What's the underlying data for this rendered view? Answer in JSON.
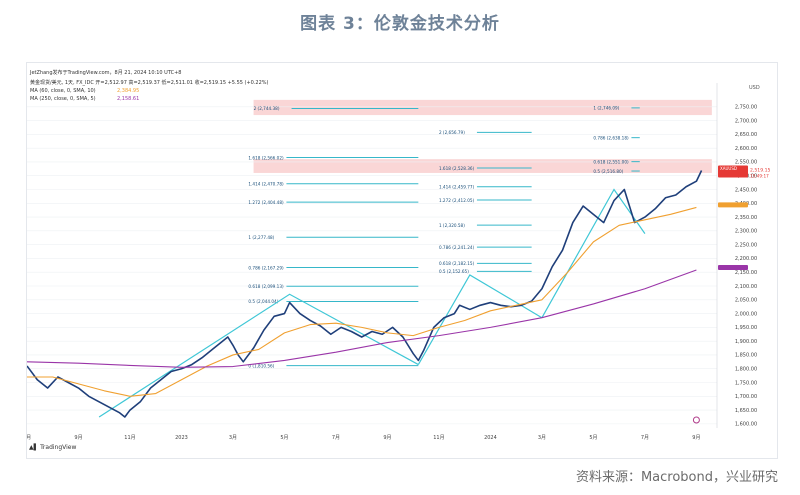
{
  "figure": {
    "title": "图表 3：伦敦金技术分析",
    "source": "资料来源：Macrobond，兴业研究"
  },
  "chart_header": {
    "user_line": "JetZhang发布于TradingView.com，8月 21, 2024 10:10 UTC+8",
    "symbol_line": "黄金现货/美元, 1天, FX_IDC  开=2,512.97  高=2,519.37  低=2,511.01  收=2,519.15  +5.55 (+0.22%)",
    "ma60_line": "MA (60, close, 0, SMA, 10)",
    "ma60_value": "2,384.95",
    "ma250_line": "MA (250, close, 0, SMA, 5)",
    "ma250_value": "2,158.61",
    "currency": "USD",
    "footer_logo": "TradingView"
  },
  "chart_data": {
    "type": "line",
    "x_ticks": [
      "7月",
      "9月",
      "11月",
      "2023",
      "3月",
      "5月",
      "7月",
      "9月",
      "11月",
      "2024",
      "3月",
      "5月",
      "7月",
      "9月"
    ],
    "y_ticks": [
      1600,
      1650,
      1700,
      1750,
      1800,
      1850,
      1900,
      1950,
      2000,
      2050,
      2100,
      2150,
      2200,
      2250,
      2300,
      2350,
      2400,
      2450,
      2500,
      2550,
      2600,
      2650,
      2700,
      2750
    ],
    "y_tick_labels": [
      "1,600.00",
      "1,650.00",
      "1,700.00",
      "1,750.00",
      "1,800.00",
      "1,850.00",
      "1,900.00",
      "1,950.00",
      "2,000.00",
      "2,050.00",
      "2,100.00",
      "2,150.00",
      "2,200.00",
      "2,250.00",
      "2,300.00",
      "2,350.00",
      "2,400.00",
      "2,450.00",
      "2,500.00",
      "2,550.00",
      "2,600.00",
      "2,650.00",
      "2,700.00",
      "2,750.00"
    ],
    "ylim": [
      1585,
      2800
    ],
    "series": [
      {
        "key": "price",
        "name": "黄金现货/美元",
        "color": "#1f3f7a",
        "points": [
          [
            0,
            1810
          ],
          [
            0.2,
            1760
          ],
          [
            0.4,
            1730
          ],
          [
            0.6,
            1770
          ],
          [
            0.8,
            1750
          ],
          [
            1.0,
            1730
          ],
          [
            1.2,
            1700
          ],
          [
            1.4,
            1680
          ],
          [
            1.6,
            1660
          ],
          [
            1.8,
            1640
          ],
          [
            1.9,
            1625
          ],
          [
            2.0,
            1650
          ],
          [
            2.2,
            1680
          ],
          [
            2.4,
            1730
          ],
          [
            2.6,
            1760
          ],
          [
            2.8,
            1790
          ],
          [
            3.0,
            1800
          ],
          [
            3.2,
            1815
          ],
          [
            3.4,
            1840
          ],
          [
            3.6,
            1870
          ],
          [
            3.8,
            1900
          ],
          [
            3.9,
            1915
          ],
          [
            4.0,
            1885
          ],
          [
            4.1,
            1850
          ],
          [
            4.2,
            1825
          ],
          [
            4.4,
            1875
          ],
          [
            4.6,
            1940
          ],
          [
            4.8,
            1990
          ],
          [
            5.0,
            2000
          ],
          [
            5.1,
            2040
          ],
          [
            5.3,
            2000
          ],
          [
            5.5,
            1975
          ],
          [
            5.7,
            1955
          ],
          [
            5.9,
            1925
          ],
          [
            6.1,
            1950
          ],
          [
            6.3,
            1935
          ],
          [
            6.5,
            1915
          ],
          [
            6.7,
            1935
          ],
          [
            6.9,
            1925
          ],
          [
            7.1,
            1950
          ],
          [
            7.3,
            1915
          ],
          [
            7.5,
            1855
          ],
          [
            7.6,
            1830
          ],
          [
            7.7,
            1865
          ],
          [
            7.9,
            1950
          ],
          [
            8.1,
            1985
          ],
          [
            8.3,
            2000
          ],
          [
            8.4,
            2030
          ],
          [
            8.6,
            2015
          ],
          [
            8.8,
            2030
          ],
          [
            9.0,
            2040
          ],
          [
            9.2,
            2030
          ],
          [
            9.4,
            2025
          ],
          [
            9.6,
            2030
          ],
          [
            9.8,
            2045
          ],
          [
            10.0,
            2090
          ],
          [
            10.2,
            2170
          ],
          [
            10.4,
            2230
          ],
          [
            10.6,
            2330
          ],
          [
            10.8,
            2390
          ],
          [
            11.0,
            2360
          ],
          [
            11.2,
            2330
          ],
          [
            11.4,
            2410
          ],
          [
            11.6,
            2450
          ],
          [
            11.8,
            2330
          ],
          [
            12.0,
            2350
          ],
          [
            12.2,
            2380
          ],
          [
            12.4,
            2420
          ],
          [
            12.6,
            2430
          ],
          [
            12.8,
            2460
          ],
          [
            13.0,
            2480
          ],
          [
            13.1,
            2519
          ]
        ]
      },
      {
        "key": "ma60",
        "name": "MA 60",
        "color": "#f0a030",
        "points": [
          [
            0,
            1770
          ],
          [
            0.5,
            1770
          ],
          [
            1.0,
            1745
          ],
          [
            1.5,
            1720
          ],
          [
            2.0,
            1700
          ],
          [
            2.5,
            1710
          ],
          [
            3.0,
            1760
          ],
          [
            3.5,
            1810
          ],
          [
            4.0,
            1850
          ],
          [
            4.5,
            1870
          ],
          [
            5.0,
            1930
          ],
          [
            5.5,
            1960
          ],
          [
            6.0,
            1965
          ],
          [
            6.5,
            1950
          ],
          [
            7.0,
            1930
          ],
          [
            7.5,
            1920
          ],
          [
            8.0,
            1950
          ],
          [
            8.5,
            1975
          ],
          [
            9.0,
            2010
          ],
          [
            9.5,
            2030
          ],
          [
            10.0,
            2050
          ],
          [
            10.5,
            2150
          ],
          [
            11.0,
            2260
          ],
          [
            11.5,
            2320
          ],
          [
            12.0,
            2340
          ],
          [
            12.5,
            2360
          ],
          [
            13.0,
            2385
          ]
        ]
      },
      {
        "key": "ma250",
        "name": "MA 250",
        "color": "#9a35a8",
        "points": [
          [
            0,
            1825
          ],
          [
            1.0,
            1820
          ],
          [
            2.0,
            1812
          ],
          [
            3.0,
            1805
          ],
          [
            4.0,
            1808
          ],
          [
            5.0,
            1830
          ],
          [
            6.0,
            1860
          ],
          [
            7.0,
            1895
          ],
          [
            8.0,
            1920
          ],
          [
            9.0,
            1950
          ],
          [
            10.0,
            1985
          ],
          [
            11.0,
            2035
          ],
          [
            12.0,
            2090
          ],
          [
            13.0,
            2158
          ]
        ]
      }
    ],
    "zigzags": [
      {
        "name": "wave-2022",
        "points": [
          [
            1.4,
            1625
          ],
          [
            5.1,
            2070
          ],
          [
            7.6,
            1815
          ]
        ]
      },
      {
        "name": "wave-2023",
        "points": [
          [
            7.6,
            1815
          ],
          [
            8.6,
            2140
          ],
          [
            10.0,
            1985
          ]
        ]
      },
      {
        "name": "wave-2024",
        "points": [
          [
            10.0,
            1985
          ],
          [
            11.4,
            2450
          ],
          [
            12.0,
            2290
          ]
        ]
      }
    ],
    "zones": [
      {
        "name": "zone-2744",
        "ylo": 2720,
        "yhi": 2775,
        "x0": 4.4,
        "x1": 13.3,
        "color": "#f8c8c8"
      },
      {
        "name": "zone-2520",
        "ylo": 2510,
        "yhi": 2560,
        "x0": 4.4,
        "x1": 13.3,
        "color": "#f8c8c8"
      }
    ],
    "fib_levels": [
      {
        "label": "2 (2,744.38)",
        "price": 2744,
        "x0": 4.4,
        "x1": 7.6
      },
      {
        "label": "1.618 (2,566.02)",
        "price": 2566,
        "x0": 4.3,
        "x1": 7.6
      },
      {
        "label": "1.414 (2,470.78)",
        "price": 2471,
        "x0": 4.3,
        "x1": 7.6
      },
      {
        "label": "1.272 (2,404.48)",
        "price": 2404,
        "x0": 4.3,
        "x1": 7.6
      },
      {
        "label": "1 (2,277.48)",
        "price": 2277,
        "x0": 4.3,
        "x1": 7.6
      },
      {
        "label": "0.786 (2,167.29)",
        "price": 2167,
        "x0": 4.3,
        "x1": 7.6
      },
      {
        "label": "0.618 (2,099.13)",
        "price": 2099,
        "x0": 4.3,
        "x1": 7.6
      },
      {
        "label": "0.5 (2,044.04)",
        "price": 2044,
        "x0": 4.3,
        "x1": 7.6
      },
      {
        "label": "0 (1,810.56)",
        "price": 1811,
        "x0": 4.3,
        "x1": 7.6
      },
      {
        "label": "2 (2,656.79)",
        "price": 2657,
        "x0": 8.0,
        "x1": 9.8
      },
      {
        "label": "1.618 (2,528.36)",
        "price": 2528,
        "x0": 8.0,
        "x1": 9.8
      },
      {
        "label": "1.414 (2,459.77)",
        "price": 2460,
        "x0": 8.0,
        "x1": 9.8
      },
      {
        "label": "1.272 (2,412.05)",
        "price": 2412,
        "x0": 8.0,
        "x1": 9.8
      },
      {
        "label": "1 (2,320.58)",
        "price": 2321,
        "x0": 8.0,
        "x1": 9.8
      },
      {
        "label": "0.786 (2,241.24)",
        "price": 2241,
        "x0": 8.0,
        "x1": 9.8
      },
      {
        "label": "0.618 (2,182.15)",
        "price": 2182,
        "x0": 8.0,
        "x1": 9.8
      },
      {
        "label": "0.5 (2,152.65)",
        "price": 2153,
        "x0": 8.0,
        "x1": 9.8
      },
      {
        "label": "1 (2,746.09)",
        "price": 2746,
        "x0": 11.0,
        "x1": 11.9
      },
      {
        "label": "0.786 (2,638.18)",
        "price": 2638,
        "x0": 11.0,
        "x1": 11.9
      },
      {
        "label": "0.618 (2,551.00)",
        "price": 2551,
        "x0": 11.0,
        "x1": 11.9
      },
      {
        "label": "0.5 (2,516.80)",
        "price": 2517,
        "x0": 11.0,
        "x1": 11.9
      }
    ],
    "price_tags": [
      {
        "label": "XAUUSD",
        "value": "2,519.15",
        "sub": "15:49:17",
        "price": 2519,
        "color": "#e53935"
      },
      {
        "label": "MA",
        "value": "",
        "price": 2385,
        "color": "#f0a030"
      },
      {
        "label": "MA",
        "value": "",
        "price": 2158,
        "color": "#9a35a8"
      }
    ],
    "grid": true
  }
}
